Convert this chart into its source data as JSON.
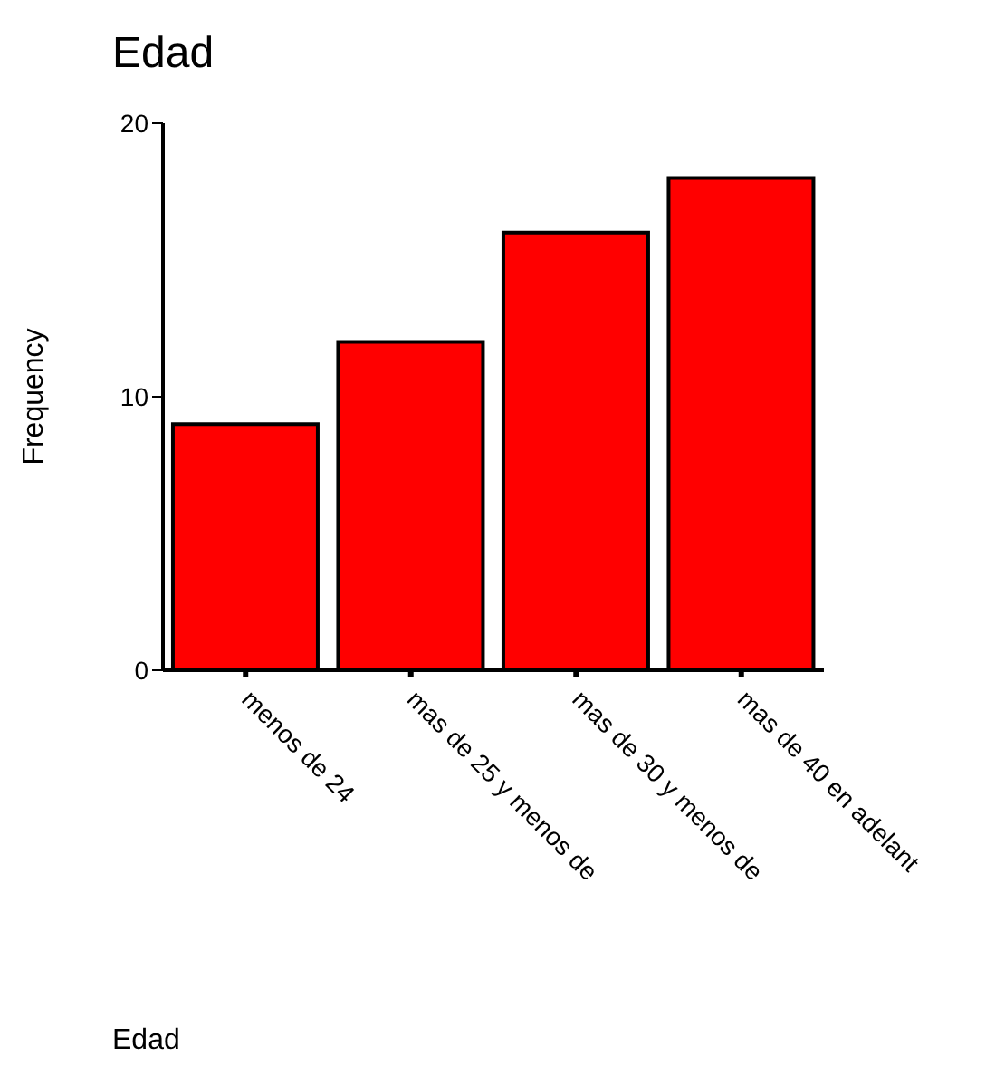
{
  "chart_data": {
    "type": "bar",
    "title": "Edad",
    "xlabel": "Edad",
    "ylabel": "Frequency",
    "categories": [
      "menos de 24",
      "mas de 25 y menos de",
      "mas de 30 y menos de",
      "mas de 40 en adelant"
    ],
    "values": [
      9,
      12,
      16,
      18
    ],
    "color": "#ff0000",
    "ylim": [
      0,
      20
    ],
    "yticks": [
      0,
      10,
      20
    ],
    "grid": false,
    "legend": false
  }
}
